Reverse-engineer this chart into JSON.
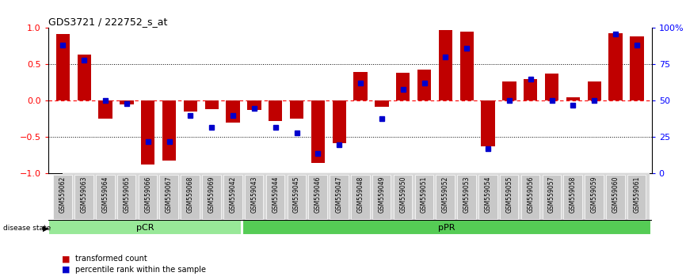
{
  "title": "GDS3721 / 222752_s_at",
  "samples": [
    "GSM559062",
    "GSM559063",
    "GSM559064",
    "GSM559065",
    "GSM559066",
    "GSM559067",
    "GSM559068",
    "GSM559069",
    "GSM559042",
    "GSM559043",
    "GSM559044",
    "GSM559045",
    "GSM559046",
    "GSM559047",
    "GSM559048",
    "GSM559049",
    "GSM559050",
    "GSM559051",
    "GSM559052",
    "GSM559053",
    "GSM559054",
    "GSM559055",
    "GSM559056",
    "GSM559057",
    "GSM559058",
    "GSM559059",
    "GSM559060",
    "GSM559061"
  ],
  "transformed_count": [
    0.92,
    0.63,
    -0.25,
    -0.05,
    -0.88,
    -0.82,
    -0.15,
    -0.12,
    -0.3,
    -0.13,
    -0.28,
    -0.25,
    -0.85,
    -0.58,
    0.4,
    -0.08,
    0.38,
    0.43,
    0.97,
    0.95,
    -0.62,
    0.27,
    0.3,
    0.37,
    0.05,
    0.27,
    0.93,
    0.88
  ],
  "percentile_rank": [
    88,
    78,
    50,
    48,
    22,
    22,
    40,
    32,
    40,
    45,
    32,
    28,
    14,
    20,
    62,
    38,
    58,
    62,
    80,
    86,
    17,
    50,
    65,
    50,
    47,
    50,
    96,
    88
  ],
  "pCR_count": 9,
  "pPR_count": 19,
  "bar_color": "#C00000",
  "dot_color": "#0000CC",
  "pCR_color": "#98E898",
  "pPR_color": "#55CC55",
  "ylim": [
    -1,
    1
  ],
  "yticks_left": [
    -1,
    -0.5,
    0,
    0.5,
    1
  ],
  "yticks_right": [
    0,
    25,
    50,
    75,
    100
  ],
  "plot_bg": "#ffffff"
}
